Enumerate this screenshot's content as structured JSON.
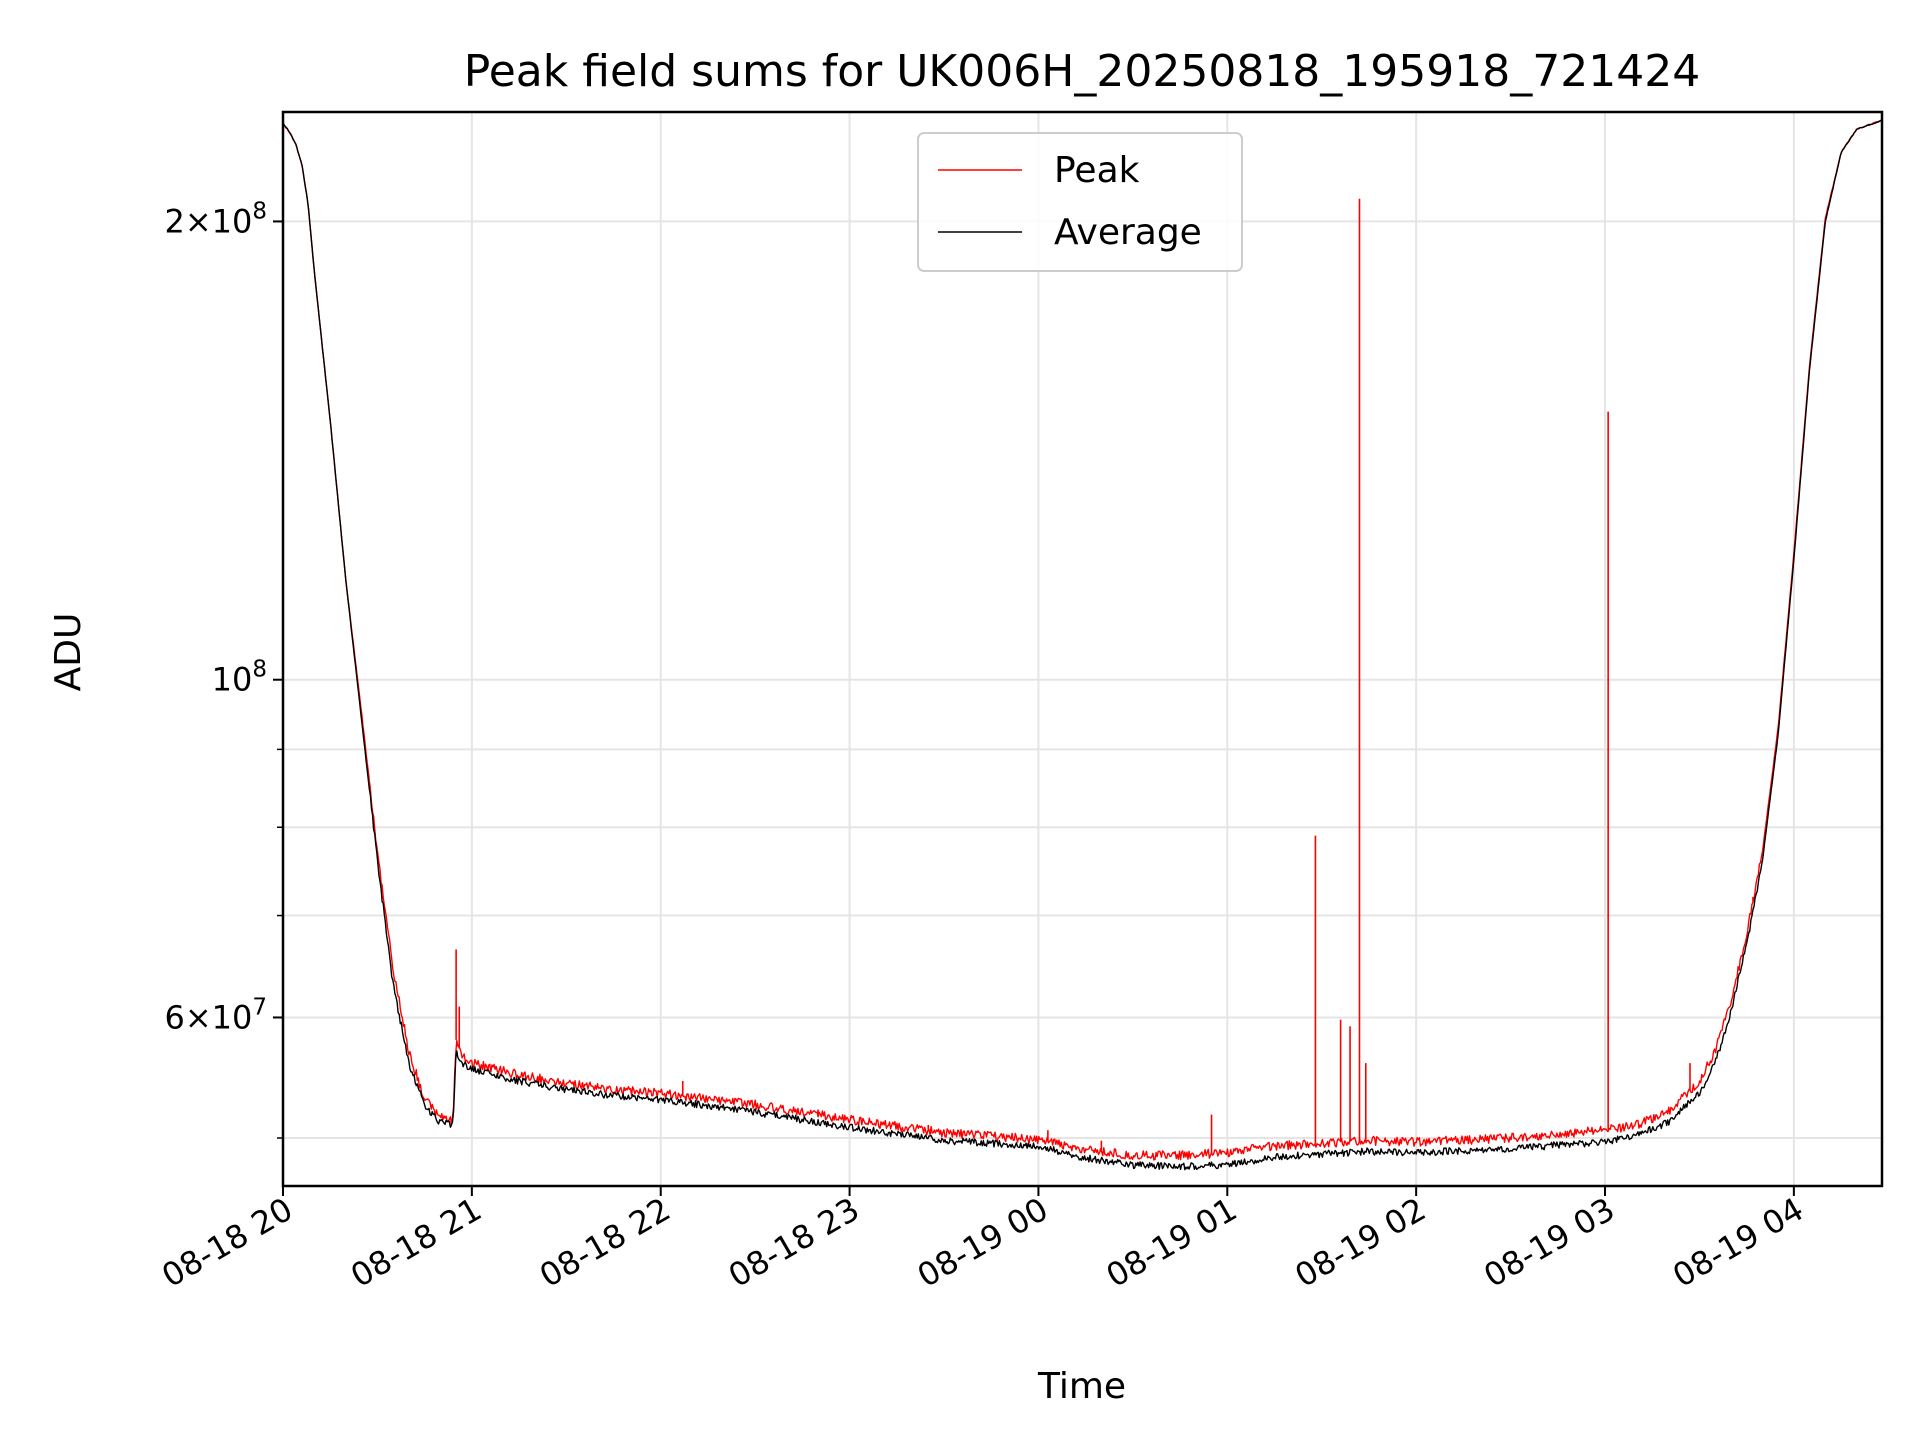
{
  "chart_data": {
    "type": "line",
    "title": "Peak field sums for UK006H_20250818_195918_721424",
    "xlabel": "Time",
    "ylabel": "ADU",
    "yscale": "log",
    "ylim": [
      46500000,
      236000000
    ],
    "xlim": [
      "2025-08-18T20:00",
      "2025-08-19T04:28"
    ],
    "grid": true,
    "legend_position": "upper center",
    "x_ticks": [
      {
        "x": "2025-08-18T20:00",
        "label": "08-18 20"
      },
      {
        "x": "2025-08-18T21:00",
        "label": "08-18 21"
      },
      {
        "x": "2025-08-18T22:00",
        "label": "08-18 22"
      },
      {
        "x": "2025-08-18T23:00",
        "label": "08-18 23"
      },
      {
        "x": "2025-08-19T00:00",
        "label": "08-19 00"
      },
      {
        "x": "2025-08-19T01:00",
        "label": "08-19 01"
      },
      {
        "x": "2025-08-19T02:00",
        "label": "08-19 02"
      },
      {
        "x": "2025-08-19T03:00",
        "label": "08-19 03"
      },
      {
        "x": "2025-08-19T04:00",
        "label": "08-19 04"
      }
    ],
    "y_ticks_major": [
      {
        "y": 60000000,
        "mant": "6",
        "exp": "7"
      },
      {
        "y": 100000000,
        "mant": "",
        "exp": "8"
      },
      {
        "y": 200000000,
        "mant": "2",
        "exp": "8"
      }
    ],
    "y_ticks_minor": [
      50000000,
      70000000,
      80000000,
      90000000
    ],
    "series": [
      {
        "name": "Average",
        "color": "#000000",
        "x": [
          "2025-08-18T20:00",
          "2025-08-18T20:02",
          "2025-08-18T20:04",
          "2025-08-18T20:06",
          "2025-08-18T20:08",
          "2025-08-18T20:10",
          "2025-08-18T20:15",
          "2025-08-18T20:20",
          "2025-08-18T20:25",
          "2025-08-18T20:30",
          "2025-08-18T20:35",
          "2025-08-18T20:40",
          "2025-08-18T20:45",
          "2025-08-18T20:50",
          "2025-08-18T20:54",
          "2025-08-18T20:55",
          "2025-08-18T20:57",
          "2025-08-18T21:00",
          "2025-08-18T21:15",
          "2025-08-18T21:30",
          "2025-08-18T21:45",
          "2025-08-18T22:00",
          "2025-08-18T22:30",
          "2025-08-18T23:00",
          "2025-08-18T23:30",
          "2025-08-19T00:00",
          "2025-08-19T00:15",
          "2025-08-19T00:30",
          "2025-08-19T00:45",
          "2025-08-19T01:00",
          "2025-08-19T01:15",
          "2025-08-19T01:30",
          "2025-08-19T01:45",
          "2025-08-19T02:00",
          "2025-08-19T02:30",
          "2025-08-19T03:00",
          "2025-08-19T03:10",
          "2025-08-19T03:20",
          "2025-08-19T03:30",
          "2025-08-19T03:35",
          "2025-08-19T03:40",
          "2025-08-19T03:45",
          "2025-08-19T03:50",
          "2025-08-19T03:55",
          "2025-08-19T04:00",
          "2025-08-19T04:05",
          "2025-08-19T04:10",
          "2025-08-19T04:15",
          "2025-08-19T04:20",
          "2025-08-19T04:28"
        ],
        "y": [
          232000000,
          229000000,
          225000000,
          218000000,
          205000000,
          185000000,
          148000000,
          116000000,
          94000000,
          76000000,
          63000000,
          56000000,
          52500000,
          51200000,
          51000000,
          57000000,
          56000000,
          55500000,
          54500000,
          53800000,
          53300000,
          53000000,
          52000000,
          50800000,
          49800000,
          49400000,
          48500000,
          48000000,
          47900000,
          48000000,
          48600000,
          48800000,
          49000000,
          48900000,
          49200000,
          49700000,
          50200000,
          51200000,
          53500000,
          56000000,
          60500000,
          67000000,
          76000000,
          92000000,
          120000000,
          160000000,
          200000000,
          222000000,
          230000000,
          233000000
        ]
      },
      {
        "name": "Peak",
        "color": "#ff0000",
        "x": [
          "2025-08-18T20:00",
          "2025-08-18T20:02",
          "2025-08-18T20:04",
          "2025-08-18T20:06",
          "2025-08-18T20:08",
          "2025-08-18T20:10",
          "2025-08-18T20:15",
          "2025-08-18T20:20",
          "2025-08-18T20:25",
          "2025-08-18T20:30",
          "2025-08-18T20:35",
          "2025-08-18T20:40",
          "2025-08-18T20:45",
          "2025-08-18T20:50",
          "2025-08-18T20:54",
          "2025-08-18T20:55",
          "2025-08-18T20:57",
          "2025-08-18T21:00",
          "2025-08-18T21:15",
          "2025-08-18T21:30",
          "2025-08-18T21:45",
          "2025-08-18T22:00",
          "2025-08-18T22:30",
          "2025-08-18T23:00",
          "2025-08-18T23:30",
          "2025-08-19T00:00",
          "2025-08-19T00:15",
          "2025-08-19T00:30",
          "2025-08-19T00:45",
          "2025-08-19T01:00",
          "2025-08-19T01:15",
          "2025-08-19T01:30",
          "2025-08-19T01:45",
          "2025-08-19T02:00",
          "2025-08-19T02:30",
          "2025-08-19T03:00",
          "2025-08-19T03:10",
          "2025-08-19T03:20",
          "2025-08-19T03:30",
          "2025-08-19T03:35",
          "2025-08-19T03:40",
          "2025-08-19T03:45",
          "2025-08-19T03:50",
          "2025-08-19T03:55",
          "2025-08-19T04:00",
          "2025-08-19T04:05",
          "2025-08-19T04:10",
          "2025-08-19T04:15",
          "2025-08-19T04:20",
          "2025-08-19T04:28"
        ],
        "y": [
          232000000,
          229000000,
          225000000,
          218000000,
          205000000,
          185000000,
          148000000,
          116000000,
          95000000,
          77000000,
          64500000,
          57000000,
          53000000,
          51600000,
          51300000,
          58000000,
          56500000,
          56000000,
          55000000,
          54300000,
          53800000,
          53500000,
          52600000,
          51400000,
          50400000,
          49900000,
          49100000,
          48700000,
          48700000,
          48900000,
          49400000,
          49600000,
          49800000,
          49700000,
          50000000,
          50600000,
          51000000,
          52000000,
          54500000,
          57000000,
          61500000,
          68000000,
          77000000,
          93000000,
          121000000,
          161000000,
          201000000,
          222000000,
          230000000,
          233000000
        ],
        "spikes": [
          {
            "x": "2025-08-18T20:55",
            "y": 66500000
          },
          {
            "x": "2025-08-18T20:56",
            "y": 61000000
          },
          {
            "x": "2025-08-18T21:35",
            "y": 54300000
          },
          {
            "x": "2025-08-18T22:07",
            "y": 54500000
          },
          {
            "x": "2025-08-18T22:50",
            "y": 52200000
          },
          {
            "x": "2025-08-18T23:25",
            "y": 51000000
          },
          {
            "x": "2025-08-19T00:03",
            "y": 50600000
          },
          {
            "x": "2025-08-19T00:20",
            "y": 49800000
          },
          {
            "x": "2025-08-19T00:55",
            "y": 51800000
          },
          {
            "x": "2025-08-19T01:28",
            "y": 79000000
          },
          {
            "x": "2025-08-19T01:36",
            "y": 59800000
          },
          {
            "x": "2025-08-19T01:39",
            "y": 59200000
          },
          {
            "x": "2025-08-19T01:42",
            "y": 207000000
          },
          {
            "x": "2025-08-19T01:44",
            "y": 56000000
          },
          {
            "x": "2025-08-19T03:01",
            "y": 150000000
          },
          {
            "x": "2025-08-19T03:27",
            "y": 56000000
          },
          {
            "x": "2025-08-19T03:47",
            "y": 72000000
          }
        ]
      }
    ]
  }
}
